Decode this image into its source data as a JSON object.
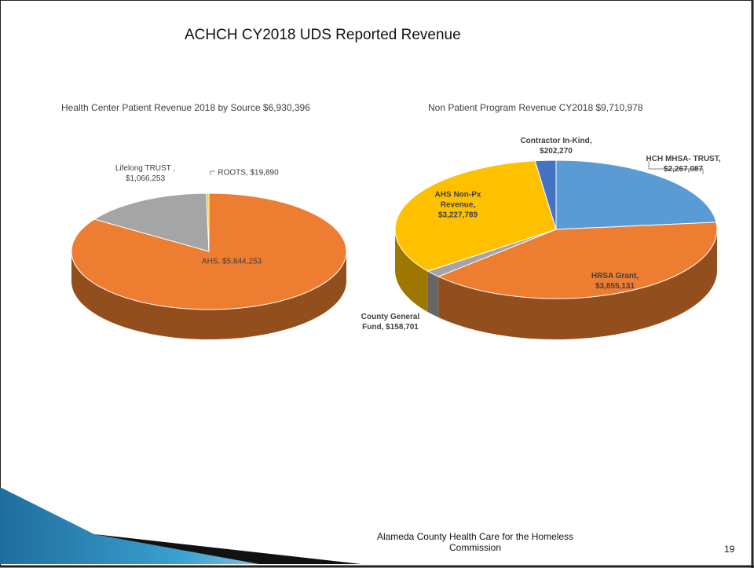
{
  "slide": {
    "title": "ACHCH CY2018 UDS Reported Revenue",
    "footer": "Alameda County Health Care for the Homeless Commission",
    "page": "19"
  },
  "chart_data": [
    {
      "type": "pie",
      "title": "Health Center Patient Revenue 2018 by Source $6,930,396",
      "categories": [
        "AHS,",
        "Lifelong TRUST ,",
        "ROOTS,"
      ],
      "values": [
        5844253,
        1066253,
        19890
      ],
      "value_labels": [
        "$5,844,253",
        "$1,066,253",
        "$19,890"
      ],
      "colors": [
        "#ed7d31",
        "#a5a5a5",
        "#ffc000"
      ]
    },
    {
      "type": "pie",
      "title": "Non Patient Program Revenue CY2018 $9,710,978",
      "categories": [
        "HCH MHSA- TRUST,",
        "HRSA Grant,",
        "County General Fund,",
        "AHS Non-Px Revenue,",
        "Contractor In-Kind,"
      ],
      "values": [
        2267087,
        3855131,
        158701,
        3227789,
        202270
      ],
      "value_labels": [
        "$2,267,087",
        "$3,855,131",
        "$158,701",
        "$3,227,789",
        "$202,270"
      ],
      "colors": [
        "#5b9bd5",
        "#ed7d31",
        "#a5a5a5",
        "#ffc000",
        "#4472c4"
      ]
    }
  ]
}
